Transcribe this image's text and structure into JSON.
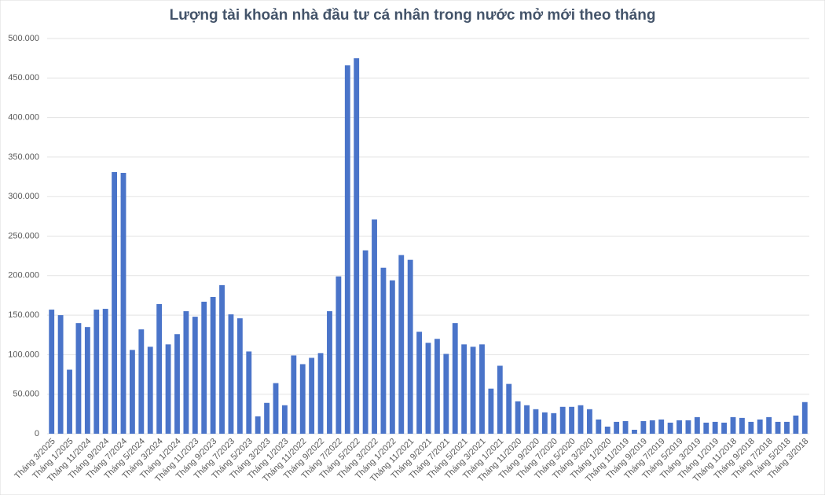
{
  "chart_data": {
    "type": "bar",
    "title": "Lượng tài khoản nhà đầu tư cá nhân trong nước mở mới theo tháng",
    "categories": [
      "Tháng 3/2025",
      null,
      "Tháng 1/2025",
      null,
      "Tháng 11/2024",
      null,
      "Tháng 9/2024",
      null,
      "Tháng 7/2024",
      null,
      "Tháng 5/2024",
      null,
      "Tháng 3/2024",
      null,
      "Tháng 1/2024",
      null,
      "Tháng 11/2023",
      null,
      "Tháng 9/2023",
      null,
      "Tháng 7/2023",
      null,
      "Tháng 5/2023",
      null,
      "Tháng 3/2023",
      null,
      "Tháng 1/2023",
      null,
      "Tháng 11/2022",
      null,
      "Tháng 9/2022",
      null,
      "Tháng 7/2022",
      null,
      "Tháng 5/2022",
      null,
      "Tháng 3/2022",
      null,
      "Tháng 1/2022",
      null,
      "Tháng 11/2021",
      null,
      "Tháng 9/2021",
      null,
      "Tháng 7/2021",
      null,
      "Tháng 5/2021",
      null,
      "Tháng 3/2021",
      null,
      "Tháng 1/2021",
      null,
      "Tháng 11/2020",
      null,
      "Tháng 9/2020",
      null,
      "Tháng 7/2020",
      null,
      "Tháng 5/2020",
      null,
      "Tháng 3/2020",
      null,
      "Tháng 1/2020",
      null,
      "Tháng 11/2019",
      null,
      "Tháng 9/2019",
      null,
      "Tháng 7/2019",
      null,
      "Tháng 5/2019",
      null,
      "Tháng 3/2019",
      null,
      "Tháng 1/2019",
      null,
      "Tháng 11/2018",
      null,
      "Tháng 9/2018",
      null,
      "Tháng 7/2018",
      null,
      "Tháng 5/2018",
      null,
      "Tháng 3/2018"
    ],
    "values": [
      157000,
      150000,
      81000,
      140000,
      135000,
      157000,
      158000,
      331000,
      330000,
      106000,
      132000,
      110000,
      164000,
      113000,
      126000,
      155000,
      148000,
      167000,
      173000,
      188000,
      151000,
      146000,
      104000,
      22000,
      39000,
      64000,
      36000,
      99000,
      88000,
      96000,
      102000,
      155000,
      199000,
      466000,
      475000,
      232000,
      271000,
      210000,
      194000,
      226000,
      220000,
      129000,
      115000,
      120000,
      101000,
      140000,
      113000,
      110000,
      113000,
      57000,
      86000,
      63000,
      41000,
      36000,
      31000,
      27000,
      26000,
      34000,
      34000,
      36000,
      31000,
      18000,
      9000,
      15000,
      16000,
      5000,
      16000,
      17000,
      18000,
      14000,
      17000,
      17000,
      21000,
      14000,
      15000,
      14000,
      21000,
      20000,
      15000,
      18000,
      21000,
      15000,
      15000,
      23000,
      40000
    ],
    "color": "#4a74c9",
    "ylim": [
      0,
      500000
    ],
    "yticks": [
      0,
      {
        "value": 50000,
        "label": "50.000"
      },
      {
        "value": 100000,
        "label": "100.000"
      },
      {
        "value": 150000,
        "label": "150.000"
      },
      {
        "value": 200000,
        "label": "200.000"
      },
      {
        "value": 250000,
        "label": "250.000"
      },
      {
        "value": 300000,
        "label": "300.000"
      },
      {
        "value": 350000,
        "label": "350.000"
      },
      {
        "value": 400000,
        "label": "400.000"
      },
      {
        "value": 450000,
        "label": "450.000"
      },
      {
        "value": 500000,
        "label": "500.000"
      }
    ],
    "grid": true
  }
}
